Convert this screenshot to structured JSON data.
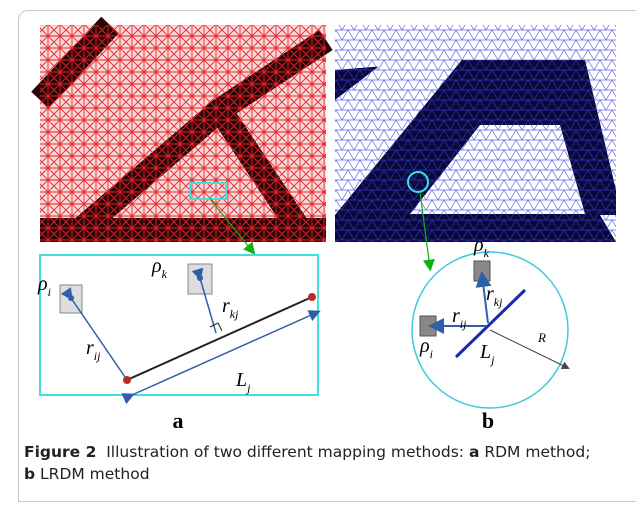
{
  "figure": {
    "panels": [
      {
        "label": "a",
        "annotations": [
          {
            "symbol": "ρ",
            "sub": "i"
          },
          {
            "symbol": "ρ",
            "sub": "k"
          },
          {
            "symbol": "r",
            "sub": "ij"
          },
          {
            "symbol": "r",
            "sub": "kj"
          },
          {
            "symbol": "L",
            "sub": "j"
          }
        ]
      },
      {
        "label": "b",
        "annotations": [
          {
            "symbol": "ρ",
            "sub": "k"
          },
          {
            "symbol": "r",
            "sub": "kj"
          },
          {
            "symbol": "r",
            "sub": "ij"
          },
          {
            "symbol": "ρ",
            "sub": "i"
          },
          {
            "symbol": "L",
            "sub": "j"
          },
          {
            "symbol": "R"
          }
        ]
      }
    ]
  },
  "caption": {
    "label": "Figure 2",
    "parts": [
      "Illustration of two different mapping methods: ",
      "a",
      " RDM method; ",
      "b",
      " LRDM method"
    ]
  }
}
